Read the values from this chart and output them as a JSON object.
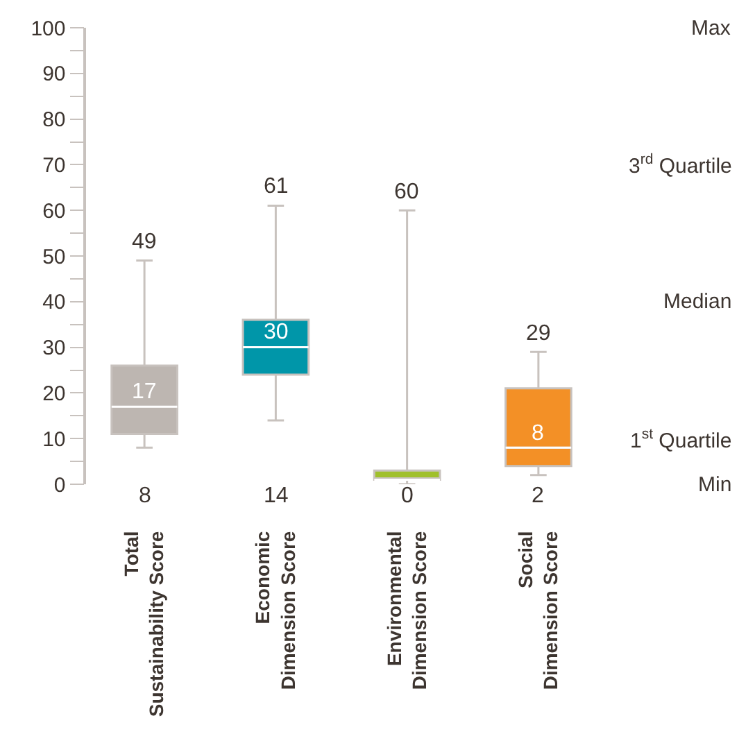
{
  "chart_data": {
    "type": "box",
    "categories": [
      "Total Sustainability Score",
      "Economic Dimension Score",
      "Environmental Dimension Score",
      "Social Dimension Score"
    ],
    "boxes": [
      {
        "low": 8,
        "q1": 11,
        "median": 17,
        "q3": 26,
        "high": 49
      },
      {
        "low": 14,
        "q1": 24,
        "median": 30,
        "q3": 36,
        "high": 61
      },
      {
        "low": 0,
        "q1": 1,
        "median": 1,
        "q3": 3,
        "high": 60
      },
      {
        "low": 2,
        "q1": 4,
        "median": 8,
        "q3": 21,
        "high": 29
      }
    ],
    "colors": [
      "#bdb6b1",
      "#0096a9",
      "#a0c02c",
      "#f39026"
    ],
    "ylim": [
      0,
      100
    ],
    "yticks": [
      0,
      10,
      20,
      30,
      40,
      50,
      60,
      70,
      80,
      90,
      100
    ],
    "annotations": [
      {
        "text": "49",
        "x": "Total Sustainability Score",
        "y": 49
      },
      {
        "text": "17",
        "x": "Total Sustainability Score",
        "y": 17
      },
      "8",
      {
        "text": "61",
        "x": "Economic Dimension Score",
        "y": 61
      },
      {
        "text": "30",
        "x": "Economic Dimension Score",
        "y": 30
      },
      "14",
      {
        "text": "60",
        "x": "Environmental Dimension Score",
        "y": 60
      },
      "0",
      {
        "text": "29",
        "x": "Social Dimension Score",
        "y": 29
      },
      {
        "text": "8",
        "x": "Social Dimension Score",
        "y": 8
      },
      "2",
      "Max",
      "3$^{rd}$ Quartile",
      "Median",
      "1$^{st}$ Quartile",
      "Min"
    ]
  }
}
